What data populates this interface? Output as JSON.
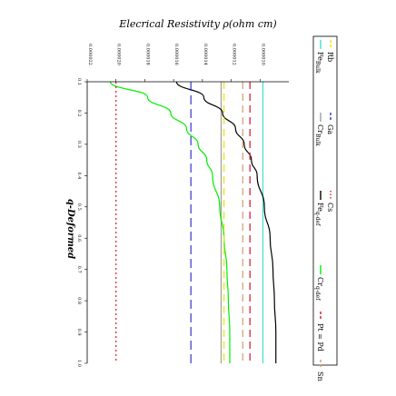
{
  "chart_data": {
    "type": "line",
    "title": "Elecrical Resistivity ρ(ohm cm)",
    "xlabel": "q-Deformed",
    "ylabel": "",
    "xlim": [
      0.1,
      1.0
    ],
    "ylim": [
      8e-06,
      2.2e-05
    ],
    "x_ticks": [
      "0.1",
      "0.2",
      "0.3",
      "0.4",
      "0.5",
      "0.6",
      "0.7",
      "0.8",
      "0.9",
      "1.0"
    ],
    "y_ticks": [
      "0.000010",
      "0.000012",
      "0.000014",
      "0.000016",
      "0.000018",
      "0.000020",
      "0.000022"
    ],
    "grid": false,
    "legend_position": "right",
    "orientation": "rotated-90",
    "series": [
      {
        "name": "Fe",
        "sub": "Bulk",
        "color": "#40e0d0",
        "dash": "solid",
        "x": [
          0.1,
          1.0
        ],
        "y": [
          9.8e-06,
          9.8e-06
        ]
      },
      {
        "name": "Cr",
        "sub": "Bulk",
        "color": "#9e9e9e",
        "dash": "solid",
        "x": [
          0.1,
          1.0
        ],
        "y": [
          1.27e-05,
          1.27e-05
        ]
      },
      {
        "name": "Fe",
        "sub": "q-def",
        "color": "#000000",
        "dash": "solid",
        "x": [
          0.1,
          0.15,
          0.2,
          0.25,
          0.3,
          0.35,
          0.4,
          0.5,
          0.6,
          0.7,
          0.8,
          0.9,
          1.0
        ],
        "y": [
          1.58e-05,
          1.39e-05,
          1.26e-05,
          1.17e-05,
          1.11e-05,
          1.06e-05,
          1.02e-05,
          9.7e-06,
          9.3e-06,
          9.1e-06,
          9e-06,
          8.9e-06,
          8.9e-06
        ]
      },
      {
        "name": "Cr",
        "sub": "q-def",
        "color": "#00ee00",
        "dash": "solid",
        "x": [
          0.1,
          0.15,
          0.2,
          0.25,
          0.3,
          0.35,
          0.4,
          0.5,
          0.6,
          0.7,
          0.8,
          0.9,
          1.0
        ],
        "y": [
          2.04e-05,
          1.78e-05,
          1.62e-05,
          1.51e-05,
          1.43e-05,
          1.37e-05,
          1.33e-05,
          1.28e-05,
          1.25e-05,
          1.23e-05,
          1.22e-05,
          1.21e-05,
          1.21e-05
        ]
      },
      {
        "name": "Pt = Pd",
        "color": "#d2142d",
        "dash": "8,5",
        "x": [
          0.1,
          1.0
        ],
        "y": [
          1.07e-05,
          1.07e-05
        ]
      },
      {
        "name": "Sn",
        "color": "#c8a070",
        "dash": "8,5",
        "x": [
          0.1,
          1.0
        ],
        "y": [
          1.12e-05,
          1.12e-05
        ]
      },
      {
        "name": "Rb",
        "color": "#e6e600",
        "dash": "8,5",
        "x": [
          0.1,
          1.0
        ],
        "y": [
          1.25e-05,
          1.25e-05
        ]
      },
      {
        "name": "Ga",
        "color": "#3333cc",
        "dash": "10,5",
        "x": [
          0.1,
          1.0
        ],
        "y": [
          1.48e-05,
          1.48e-05
        ]
      },
      {
        "name": "Cs",
        "color": "#cc2222",
        "dash": "2,3",
        "x": [
          0.1,
          1.0
        ],
        "y": [
          2e-05,
          2e-05
        ]
      }
    ]
  }
}
